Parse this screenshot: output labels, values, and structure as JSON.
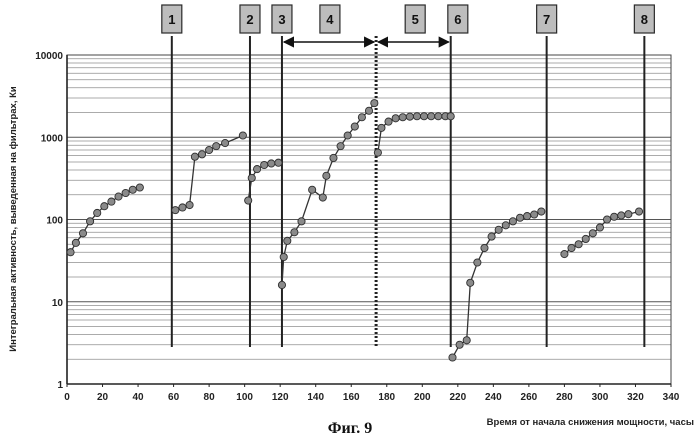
{
  "chart_data": {
    "type": "scatter",
    "title": "",
    "caption": "Фиг. 9",
    "xlabel": "Время от начала снижения мощности, часы",
    "ylabel": "Интегральная активность, выведенная на фильтрах, Ки",
    "xlim": [
      0,
      340
    ],
    "ylim": [
      1,
      10000
    ],
    "y_scale": "log",
    "x_ticks": [
      0,
      20,
      40,
      60,
      80,
      100,
      120,
      140,
      160,
      180,
      200,
      220,
      240,
      260,
      280,
      300,
      320,
      340
    ],
    "y_ticks": [
      1,
      10,
      100,
      1000,
      10000
    ],
    "y_tick_labels": [
      "1",
      "10",
      "100",
      "1000",
      "10000"
    ],
    "grid": true,
    "marker_color": "#8a8a8a",
    "line_color": "#333333",
    "series": [
      {
        "x": [
          2,
          5,
          9,
          13,
          17,
          21,
          25,
          29,
          33,
          37,
          41
        ],
        "y": [
          40,
          52,
          68,
          95,
          120,
          145,
          165,
          190,
          210,
          230,
          245
        ]
      },
      {
        "x": [
          61,
          65,
          69,
          72,
          76,
          80,
          84,
          89,
          99
        ],
        "y": [
          130,
          140,
          150,
          580,
          620,
          700,
          780,
          850,
          1050
        ]
      },
      {
        "x": [
          102,
          104,
          107,
          111,
          115,
          119
        ],
        "y": [
          170,
          320,
          410,
          460,
          480,
          490
        ]
      },
      {
        "x": [
          121,
          122,
          124,
          128,
          132,
          138,
          144,
          146,
          150,
          154,
          158,
          162,
          166,
          170,
          173
        ],
        "y": [
          16,
          35,
          55,
          70,
          95,
          230,
          185,
          340,
          560,
          780,
          1050,
          1350,
          1750,
          2100,
          2600
        ]
      },
      {
        "x": [
          175,
          177,
          181,
          185,
          189,
          193,
          197,
          201,
          205,
          209,
          213,
          216
        ],
        "y": [
          650,
          1300,
          1550,
          1700,
          1750,
          1780,
          1800,
          1800,
          1800,
          1800,
          1800,
          1800
        ]
      },
      {
        "x": [
          217,
          221,
          225,
          227,
          231,
          235,
          239,
          243,
          247,
          251,
          255,
          259,
          263,
          267
        ],
        "y": [
          2.1,
          3.0,
          3.4,
          17,
          30,
          45,
          62,
          75,
          85,
          95,
          105,
          110,
          115,
          125
        ]
      },
      {
        "x": [
          280,
          284,
          288,
          292,
          296,
          300,
          304,
          308,
          312,
          316,
          322
        ],
        "y": [
          38,
          45,
          50,
          58,
          68,
          80,
          100,
          108,
          112,
          116,
          125
        ]
      }
    ],
    "events": [
      {
        "label": "1",
        "x": 59
      },
      {
        "label": "2",
        "x": 103
      },
      {
        "label": "3",
        "x": 121
      },
      {
        "label": "4",
        "x": 148
      },
      {
        "label": "5",
        "x": 196
      },
      {
        "label": "6",
        "x": 220
      },
      {
        "label": "7",
        "x": 270
      },
      {
        "label": "8",
        "x": 325
      }
    ],
    "vertical_lines": [
      {
        "x": 59,
        "style": "solid"
      },
      {
        "x": 103,
        "style": "solid"
      },
      {
        "x": 121,
        "style": "solid"
      },
      {
        "x": 174,
        "style": "dotted"
      },
      {
        "x": 216,
        "style": "solid"
      },
      {
        "x": 270,
        "style": "solid"
      },
      {
        "x": 325,
        "style": "solid"
      }
    ],
    "arrows": [
      {
        "from": 121,
        "to": 174,
        "label": "4"
      },
      {
        "from": 174,
        "to": 216,
        "label": "5"
      }
    ]
  }
}
